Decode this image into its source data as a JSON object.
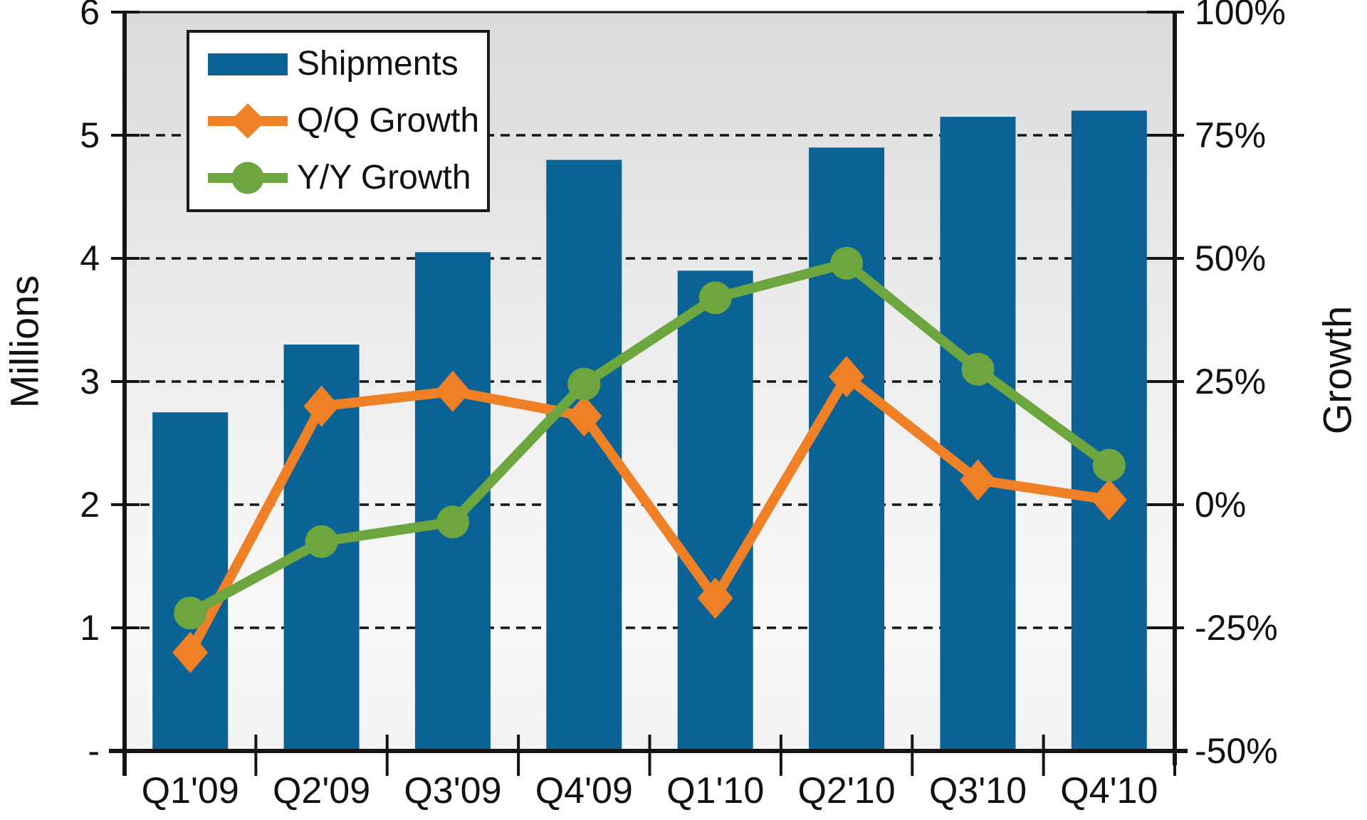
{
  "chart_data": {
    "type": "bar+line",
    "title": "",
    "categories": [
      "Q1'09",
      "Q2'09",
      "Q3'09",
      "Q4'09",
      "Q1'10",
      "Q2'10",
      "Q3'10",
      "Q4'10"
    ],
    "series": [
      {
        "name": "Shipments",
        "type": "bar",
        "axis": "left",
        "color": "#0B6295",
        "values_millions": [
          2.75,
          3.3,
          4.05,
          4.8,
          3.9,
          4.9,
          5.15,
          5.2
        ]
      },
      {
        "name": "Q/Q Growth",
        "type": "line",
        "marker": "diamond",
        "axis": "right",
        "color": "#EF8026",
        "values_pct": [
          -30,
          20,
          23,
          18,
          -19,
          26,
          5,
          1
        ]
      },
      {
        "name": "Y/Y Growth",
        "type": "line",
        "marker": "circle",
        "axis": "right",
        "color": "#6DA63E",
        "values_pct": [
          -22,
          -7.5,
          -3.5,
          24.5,
          42,
          49,
          27.5,
          8
        ]
      }
    ],
    "left_axis": {
      "title": "Millions",
      "min": 0,
      "max": 6,
      "tick_labels": [
        "6",
        "5",
        "4",
        "3",
        "2",
        "1",
        "-"
      ]
    },
    "right_axis": {
      "title": "Growth",
      "min": -50,
      "max": 100,
      "tick_labels": [
        "100%",
        "75%",
        "50%",
        "25%",
        "0%",
        "-25%",
        "-50%"
      ]
    },
    "legend": {
      "position": "top-left",
      "items": [
        "Shipments",
        "Q/Q Growth",
        "Y/Y Growth"
      ]
    },
    "grid": {
      "horizontal": "dashed",
      "levels_right_pct": [
        75,
        50,
        25,
        0,
        -25
      ],
      "top_border": "solid"
    }
  },
  "colors": {
    "bar_blue": "#0B6295",
    "orange": "#EF8026",
    "green": "#6DA63E",
    "axis_ink": "#141414",
    "plot_bg_top": "#DADADA",
    "plot_bg_mid": "#EDEDED",
    "plot_bg_low": "#F8F8F8",
    "plot_bg_bottom": "#F2F2F2"
  }
}
